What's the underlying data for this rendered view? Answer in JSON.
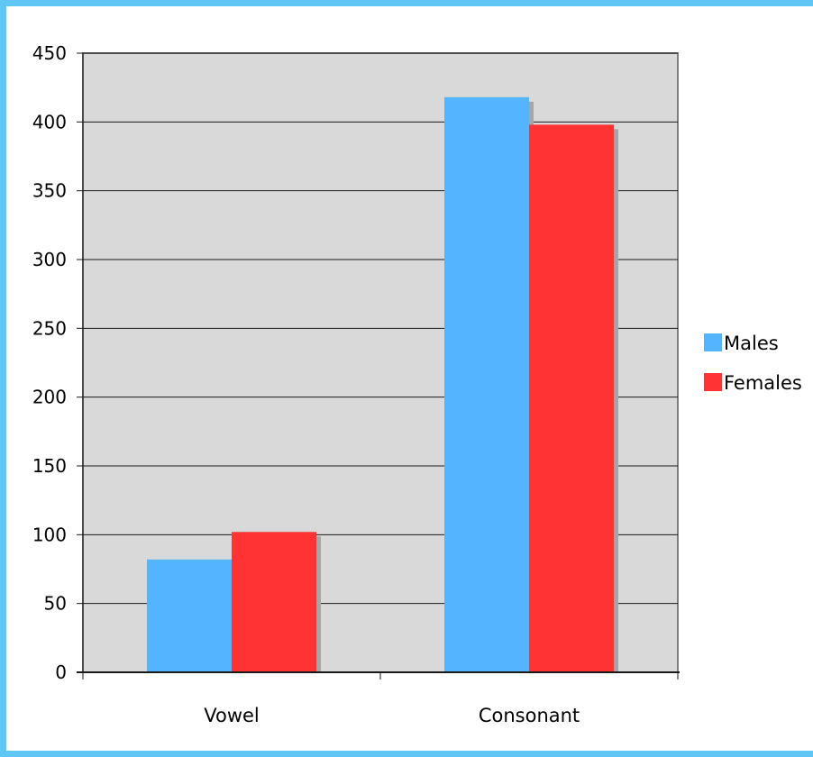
{
  "chart_data": {
    "type": "bar",
    "categories": [
      "Vowel",
      "Consonant"
    ],
    "series": [
      {
        "name": "Males",
        "values": [
          82,
          418
        ],
        "color": "#55b4ff"
      },
      {
        "name": "Females",
        "values": [
          102,
          398
        ],
        "color": "#ff3333"
      }
    ],
    "yticks": [
      "0",
      "50",
      "100",
      "150",
      "200",
      "250",
      "300",
      "350",
      "400",
      "450"
    ],
    "ylim": [
      0,
      450
    ],
    "grid": true,
    "legend": "right",
    "plot_background": "#d9d9d9",
    "page_background": "#5fc6f6"
  }
}
